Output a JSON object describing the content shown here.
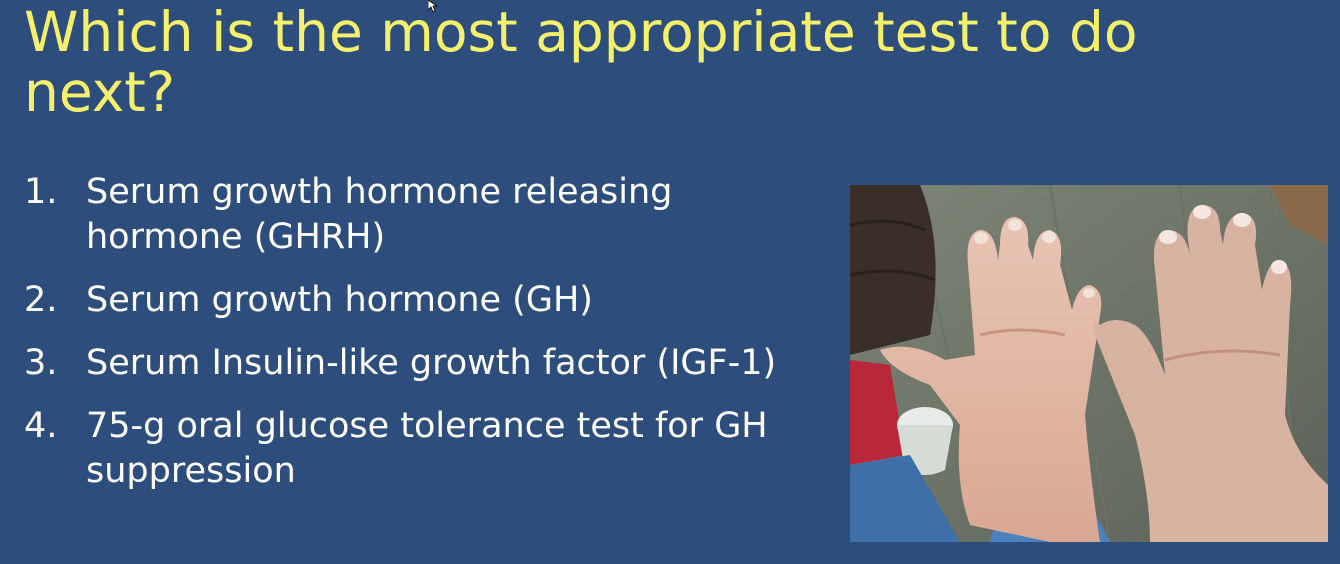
{
  "slide": {
    "title": "Which is the most appropriate test to do next?",
    "options": [
      {
        "number": "1.",
        "text": "Serum growth hormone releasing hormone (GHRH)"
      },
      {
        "number": "2.",
        "text": "Serum growth hormone (GH)"
      },
      {
        "number": "3.",
        "text": "Serum Insulin-like growth factor (IGF-1)"
      },
      {
        "number": "4.",
        "text": "75-g oral glucose tolerance test for GH suppression"
      }
    ]
  },
  "colors": {
    "background": "#2d4e7c",
    "title": "#f5f06b",
    "body_text": "#ffffff"
  },
  "icons": {
    "cursor": "mouse-pointer-icon"
  }
}
